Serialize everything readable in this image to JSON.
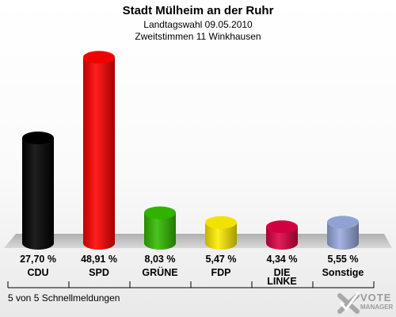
{
  "header": {
    "title": "Stadt Mülheim an der Ruhr",
    "subtitle1": "Landtagswahl 09.05.2010",
    "subtitle2": "Zweitstimmen 11 Winkhausen"
  },
  "footer": {
    "status": "5 von 5 Schnellmeldungen"
  },
  "logo": {
    "line1": "VOTE",
    "line2": "MANAGER",
    "icon": "checkmark-x-icon"
  },
  "chart_data": {
    "type": "bar",
    "categories": [
      "CDU",
      "SPD",
      "GRÜNE",
      "FDP",
      "DIE LINKE",
      "Sonstige"
    ],
    "values": [
      27.7,
      48.91,
      8.03,
      5.47,
      4.34,
      5.55
    ],
    "value_labels": [
      "27,70 %",
      "48,91 %",
      "8,03 %",
      "5,47 %",
      "4,34 %",
      "5,55 %"
    ],
    "category_labels": [
      [
        "CDU"
      ],
      [
        "SPD"
      ],
      [
        "GRÜNE"
      ],
      [
        "FDP"
      ],
      [
        "DIE",
        "LINKE"
      ],
      [
        "Sonstige"
      ]
    ],
    "colors": [
      "#000000",
      "#ff0000",
      "#33bb00",
      "#ffee00",
      "#dd0044",
      "#99aadd"
    ],
    "ylim": [
      0,
      50
    ],
    "bar_style": "3d-cylinder",
    "grid": false,
    "legend": "none"
  }
}
